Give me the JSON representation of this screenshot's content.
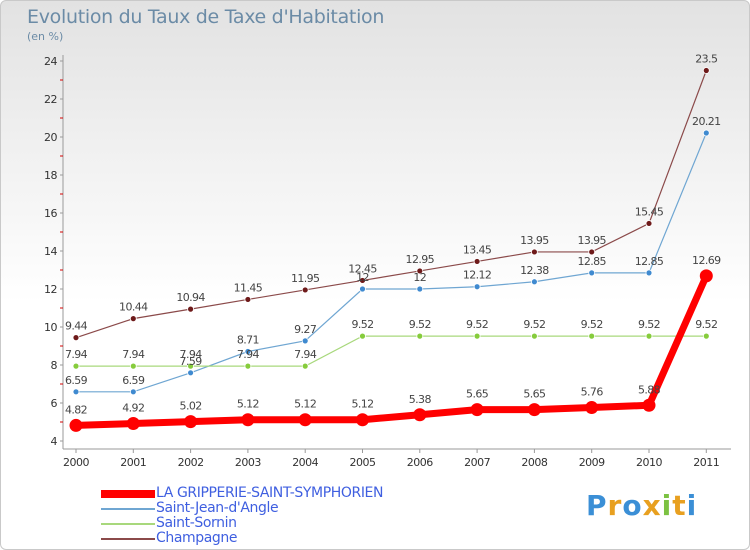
{
  "header": {
    "title": "Evolution du Taux de Taxe d'Habitation",
    "unit": "(en %)"
  },
  "logo": {
    "text": "Proxiti",
    "colors": [
      "#3b8fd6",
      "#e8a020",
      "#3b8fd6",
      "#e8a020",
      "#7cc242",
      "#e8a020",
      "#3b8fd6"
    ]
  },
  "chart_data": {
    "type": "line",
    "title": "Evolution du Taux de Taxe d'Habitation",
    "ylabel": "(en %)",
    "xlabel": "",
    "ylim": [
      4,
      24
    ],
    "yticks": [
      4,
      6,
      8,
      10,
      12,
      14,
      16,
      18,
      20,
      22,
      24
    ],
    "categories": [
      "2000",
      "2001",
      "2002",
      "2003",
      "2004",
      "2005",
      "2006",
      "2007",
      "2008",
      "2009",
      "2010",
      "2011"
    ],
    "grid": false,
    "legend_position": "bottom-left",
    "series": [
      {
        "name": "LA GRIPPERIE-SAINT-SYMPHORIEN",
        "color": "#ff0000",
        "emphasis": true,
        "values": [
          4.82,
          4.92,
          5.02,
          5.12,
          5.12,
          5.12,
          5.38,
          5.65,
          5.65,
          5.76,
          5.88,
          12.69
        ],
        "labels": [
          "4.82",
          "4.92",
          "5.02",
          "5.12",
          "5.12",
          "5.12",
          "5.38",
          "5.65",
          "5.65",
          "5.76",
          "5.88",
          "12.69"
        ]
      },
      {
        "name": "Saint-Jean-d'Angle",
        "color": "#6fa6d2",
        "marker": "#3f8ad0",
        "values": [
          6.59,
          6.59,
          7.59,
          8.71,
          9.27,
          12,
          12,
          12.12,
          12.38,
          12.85,
          12.85,
          20.21
        ],
        "labels": [
          "6.59",
          "6.59",
          "7.59",
          "8.71",
          "9.27",
          "12",
          "12",
          "12.12",
          "12.38",
          "12.85",
          "12.85",
          "20.21"
        ]
      },
      {
        "name": "Saint-Sornin",
        "color": "#a8d87c",
        "marker": "#86cc3c",
        "values": [
          7.94,
          7.94,
          7.94,
          7.94,
          7.94,
          9.52,
          9.52,
          9.52,
          9.52,
          9.52,
          9.52,
          9.52
        ],
        "labels": [
          "7.94",
          "7.94",
          "7.94",
          "7.94",
          "7.94",
          "9.52",
          "9.52",
          "9.52",
          "9.52",
          "9.52",
          "9.52",
          "9.52"
        ]
      },
      {
        "name": "Champagne",
        "color": "#8b4a4a",
        "marker": "#6e1a1a",
        "values": [
          9.44,
          10.44,
          10.94,
          11.45,
          11.95,
          12.45,
          12.95,
          13.45,
          13.95,
          13.95,
          15.45,
          23.5
        ],
        "labels": [
          "9.44",
          "10.44",
          "10.94",
          "11.45",
          "11.95",
          "12.45",
          "12.95",
          "13.45",
          "13.95",
          "13.95",
          "15.45",
          "23.5"
        ]
      }
    ]
  }
}
